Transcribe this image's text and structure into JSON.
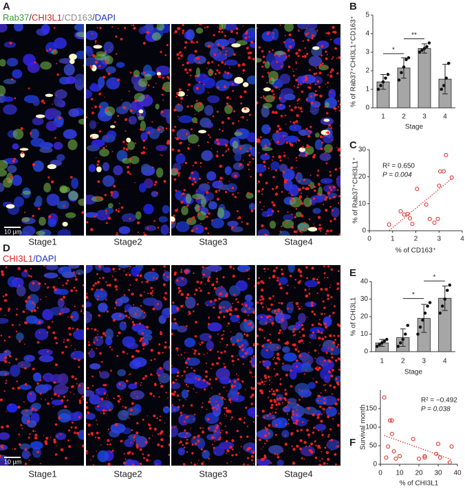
{
  "figure": {
    "A": {
      "letter": "A",
      "stain": [
        {
          "text": "Rab37",
          "color": "#2e9e2e"
        },
        {
          "text": "/",
          "color": "#222222"
        },
        {
          "text": "CHI3L1",
          "color": "#e02020"
        },
        {
          "text": "/CD163",
          "color": "#8a8a8a"
        },
        {
          "text": "/DAPI",
          "color": "#2030c0"
        }
      ],
      "stages": [
        "Stage1",
        "Stage2",
        "Stage3",
        "Stage4"
      ],
      "scale_bar": "10 µm"
    },
    "D": {
      "letter": "D",
      "stain": [
        {
          "text": "CHI3L1",
          "color": "#e02020"
        },
        {
          "text": "/DAPI",
          "color": "#2030c0"
        }
      ],
      "stages": [
        "Stage1",
        "Stage2",
        "Stage3",
        "Stage4"
      ],
      "scale_bar": "10 µm"
    }
  },
  "chart_data": [
    {
      "type": "bar",
      "panel": "B",
      "ylabel": "% of Rab37⁺CHI3L1⁺CD163⁺",
      "xlabel": "Stage",
      "categories": [
        "1",
        "2",
        "3",
        "4"
      ],
      "values": [
        1.4,
        2.15,
        3.2,
        1.55
      ],
      "errors": [
        0.4,
        0.55,
        0.25,
        0.8
      ],
      "points": [
        [
          1.0,
          1.2,
          1.4,
          1.6,
          1.8
        ],
        [
          1.5,
          1.9,
          2.2,
          2.6,
          2.7
        ],
        [
          3.0,
          3.1,
          3.2,
          3.3,
          3.5
        ],
        [
          1.0,
          1.2,
          1.6,
          2.4
        ]
      ],
      "ylim": [
        0,
        5
      ],
      "yticks": [
        0,
        1,
        2,
        3,
        4,
        5
      ],
      "color": "#a6a6a6",
      "significance": [
        {
          "between": [
            "1",
            "2"
          ],
          "label": "*"
        },
        {
          "between": [
            "2",
            "3"
          ],
          "label": "**"
        }
      ]
    },
    {
      "type": "scatter",
      "panel": "C",
      "ylabel": "% of Rab37⁺CHI3L1⁺",
      "xlabel": "% of CD163⁺",
      "x": [
        0.85,
        1.35,
        1.5,
        1.65,
        1.75,
        1.85,
        2.05,
        2.45,
        2.6,
        2.8,
        2.95,
        3.0,
        3.05,
        3.2,
        3.3,
        3.55
      ],
      "values": [
        2.3,
        7.2,
        6.0,
        6.2,
        4.6,
        2.5,
        15.5,
        9.7,
        4.4,
        3.0,
        4.4,
        16.7,
        22.0,
        22.0,
        28.0,
        19.7
      ],
      "xlim": [
        0,
        4
      ],
      "xticks": [
        0,
        1,
        2,
        3,
        4
      ],
      "ylim": [
        0,
        30
      ],
      "yticks": [
        0,
        10,
        20,
        30
      ],
      "color": "#e02020",
      "annotations": [
        "R² = 0.650",
        "P = 0.004"
      ]
    },
    {
      "type": "bar",
      "panel": "E",
      "ylabel": "% of CHI3L1",
      "xlabel": "Stage",
      "categories": [
        "1",
        "2",
        "3",
        "4"
      ],
      "values": [
        5,
        8,
        19,
        30.5
      ],
      "errors": [
        2,
        5,
        8,
        7
      ],
      "points": [
        [
          3,
          4,
          5,
          6,
          7
        ],
        [
          3,
          5,
          7,
          10,
          15
        ],
        [
          10,
          14,
          18,
          22,
          26,
          28
        ],
        [
          22,
          26,
          30,
          35,
          38
        ]
      ],
      "ylim": [
        0,
        40
      ],
      "yticks": [
        0,
        10,
        20,
        30,
        40
      ],
      "color": "#a6a6a6",
      "significance": [
        {
          "between": [
            "2",
            "3"
          ],
          "label": "*"
        },
        {
          "between": [
            "3",
            "4"
          ],
          "label": "*"
        }
      ]
    },
    {
      "type": "scatter",
      "panel": "F",
      "ylabel": "Survival month",
      "xlabel": "% of CHI3L1",
      "x": [
        2,
        5,
        6,
        6,
        4,
        3,
        7,
        8,
        10,
        17,
        20,
        23,
        23,
        29,
        30,
        31,
        36,
        37
      ],
      "values": [
        180,
        118,
        118,
        82,
        48,
        18,
        35,
        15,
        22,
        68,
        15,
        18,
        22,
        28,
        55,
        18,
        5,
        48
      ],
      "xlim": [
        0,
        40
      ],
      "xticks": [
        0,
        10,
        20,
        30,
        40
      ],
      "ylim": [
        0,
        200
      ],
      "yticks": [
        0,
        50,
        100,
        150
      ],
      "color": "#e02020",
      "annotations": [
        "R² = −0.492",
        "P = 0.038"
      ]
    }
  ]
}
